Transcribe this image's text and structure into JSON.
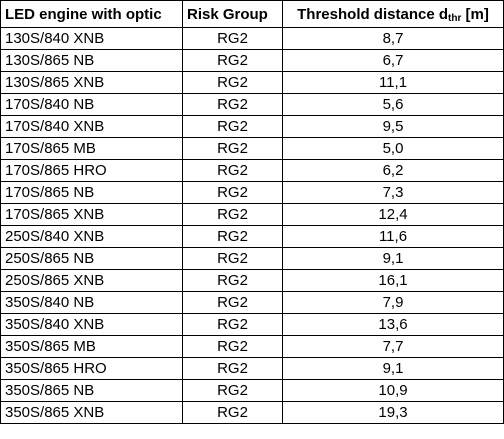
{
  "table": {
    "headers": {
      "col1": "LED engine with optic",
      "col2": "Risk Group",
      "col3_main": "Threshold distance d",
      "col3_sub": "thr",
      "col3_unit": " [m]"
    },
    "rows": [
      {
        "engine": "130S/840 XNB",
        "risk_group": "RG2",
        "distance": "8,7"
      },
      {
        "engine": "130S/865 NB",
        "risk_group": "RG2",
        "distance": "6,7"
      },
      {
        "engine": "130S/865 XNB",
        "risk_group": "RG2",
        "distance": "11,1"
      },
      {
        "engine": "170S/840 NB",
        "risk_group": "RG2",
        "distance": "5,6"
      },
      {
        "engine": "170S/840 XNB",
        "risk_group": "RG2",
        "distance": "9,5"
      },
      {
        "engine": "170S/865 MB",
        "risk_group": "RG2",
        "distance": "5,0"
      },
      {
        "engine": "170S/865 HRO",
        "risk_group": "RG2",
        "distance": "6,2"
      },
      {
        "engine": "170S/865 NB",
        "risk_group": "RG2",
        "distance": "7,3"
      },
      {
        "engine": "170S/865 XNB",
        "risk_group": "RG2",
        "distance": "12,4"
      },
      {
        "engine": "250S/840 XNB",
        "risk_group": "RG2",
        "distance": "11,6"
      },
      {
        "engine": "250S/865 NB",
        "risk_group": "RG2",
        "distance": "9,1"
      },
      {
        "engine": "250S/865 XNB",
        "risk_group": "RG2",
        "distance": "16,1"
      },
      {
        "engine": "350S/840 NB",
        "risk_group": "RG2",
        "distance": "7,9"
      },
      {
        "engine": "350S/840 XNB",
        "risk_group": "RG2",
        "distance": "13,6"
      },
      {
        "engine": "350S/865 MB",
        "risk_group": "RG2",
        "distance": "7,7"
      },
      {
        "engine": "350S/865 HRO",
        "risk_group": "RG2",
        "distance": "9,1"
      },
      {
        "engine": "350S/865 NB",
        "risk_group": "RG2",
        "distance": "10,9"
      },
      {
        "engine": "350S/865 XNB",
        "risk_group": "RG2",
        "distance": "19,3"
      }
    ]
  }
}
